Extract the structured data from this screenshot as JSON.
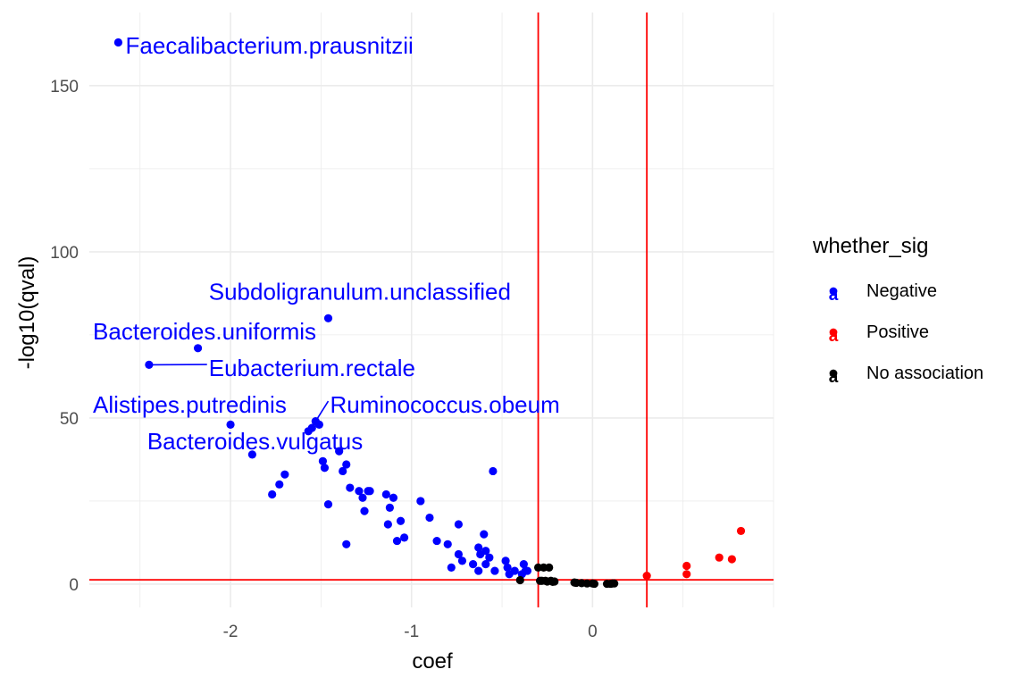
{
  "chart_data": {
    "type": "scatter",
    "title": "",
    "xlabel": "coef",
    "ylabel": "-log10(qval)",
    "xlim": [
      -2.78,
      1.0
    ],
    "ylim": [
      -7,
      172
    ],
    "x_ticks": [
      -2,
      -1,
      0
    ],
    "x_tick_labels": [
      "-2",
      "-1",
      "0"
    ],
    "y_ticks": [
      0,
      50,
      100,
      150
    ],
    "y_tick_labels": [
      "0",
      "50",
      "100",
      "150"
    ],
    "grid": true,
    "vlines": [
      -0.3,
      0.3
    ],
    "hlines": [
      1.3
    ],
    "reference_line_color": "#ff0000",
    "legend": {
      "title": "whether_sig",
      "placement": "right",
      "entries": [
        {
          "name": "Negative",
          "color": "#0000ff",
          "key": "a"
        },
        {
          "name": "Positive",
          "color": "#ff0000",
          "key": "a"
        },
        {
          "name": "No association",
          "color": "#000000",
          "key": "a"
        }
      ]
    },
    "series": [
      {
        "name": "Negative",
        "color": "#0000ff",
        "points": [
          [
            -2.62,
            163
          ],
          [
            -2.45,
            66
          ],
          [
            -2.18,
            71
          ],
          [
            -1.46,
            80
          ],
          [
            -2.0,
            48
          ],
          [
            -1.88,
            39
          ],
          [
            -1.77,
            27
          ],
          [
            -1.73,
            30
          ],
          [
            -1.7,
            33
          ],
          [
            -1.57,
            46
          ],
          [
            -1.55,
            47
          ],
          [
            -1.53,
            49
          ],
          [
            -1.51,
            48
          ],
          [
            -1.49,
            37
          ],
          [
            -1.48,
            35
          ],
          [
            -1.46,
            24
          ],
          [
            -1.4,
            40
          ],
          [
            -1.38,
            34
          ],
          [
            -1.36,
            36
          ],
          [
            -1.36,
            12
          ],
          [
            -1.34,
            29
          ],
          [
            -1.29,
            28
          ],
          [
            -1.27,
            26
          ],
          [
            -1.26,
            22
          ],
          [
            -1.24,
            28
          ],
          [
            -1.23,
            28
          ],
          [
            -1.14,
            27
          ],
          [
            -1.12,
            23
          ],
          [
            -1.13,
            18
          ],
          [
            -1.1,
            26
          ],
          [
            -1.08,
            13
          ],
          [
            -1.06,
            19
          ],
          [
            -1.04,
            14
          ],
          [
            -0.95,
            25
          ],
          [
            -0.9,
            20
          ],
          [
            -0.86,
            13
          ],
          [
            -0.8,
            12
          ],
          [
            -0.78,
            5
          ],
          [
            -0.74,
            18
          ],
          [
            -0.74,
            9
          ],
          [
            -0.72,
            7
          ],
          [
            -0.66,
            6
          ],
          [
            -0.63,
            4
          ],
          [
            -0.63,
            11
          ],
          [
            -0.62,
            9
          ],
          [
            -0.6,
            15
          ],
          [
            -0.59,
            10
          ],
          [
            -0.59,
            6
          ],
          [
            -0.57,
            8
          ],
          [
            -0.55,
            34
          ],
          [
            -0.54,
            4
          ],
          [
            -0.48,
            7
          ],
          [
            -0.47,
            5
          ],
          [
            -0.46,
            3
          ],
          [
            -0.43,
            4
          ],
          [
            -0.39,
            3
          ],
          [
            -0.38,
            6
          ],
          [
            -0.37,
            4
          ],
          [
            -0.36,
            4
          ]
        ]
      },
      {
        "name": "Positive",
        "color": "#ff0000",
        "points": [
          [
            0.3,
            2.5
          ],
          [
            0.52,
            5.5
          ],
          [
            0.52,
            3
          ],
          [
            0.7,
            8
          ],
          [
            0.77,
            7.5
          ],
          [
            0.82,
            16
          ]
        ]
      },
      {
        "name": "No association",
        "color": "#000000",
        "points": [
          [
            -0.4,
            1.2
          ],
          [
            -0.3,
            5
          ],
          [
            -0.29,
            1
          ],
          [
            -0.28,
            1
          ],
          [
            -0.27,
            5
          ],
          [
            -0.26,
            1
          ],
          [
            -0.25,
            0.8
          ],
          [
            -0.24,
            5
          ],
          [
            -0.23,
            1
          ],
          [
            -0.22,
            0.7
          ],
          [
            -0.21,
            0.8
          ],
          [
            -0.1,
            0.5
          ],
          [
            -0.09,
            0.4
          ],
          [
            -0.06,
            0.3
          ],
          [
            -0.03,
            0.2
          ],
          [
            0.0,
            0.2
          ],
          [
            0.01,
            0.1
          ],
          [
            0.08,
            0.1
          ],
          [
            0.1,
            0.1
          ],
          [
            0.11,
            0.2
          ],
          [
            0.12,
            0.2
          ]
        ]
      }
    ],
    "annotations": [
      {
        "text": "Faecalibacterium.prausnitzii",
        "x": -2.58,
        "y": 162,
        "anchor": "start"
      },
      {
        "text": "Subdoligranulum.unclassified",
        "x": -2.12,
        "y": 88,
        "anchor": "start"
      },
      {
        "text": "Bacteroides.uniformis",
        "x": -2.76,
        "y": 76,
        "anchor": "start"
      },
      {
        "text": "Eubacterium.rectale",
        "x": -2.12,
        "y": 65,
        "anchor": "start",
        "line_to": [
          -2.45,
          66
        ]
      },
      {
        "text": "Alistipes.putredinis",
        "x": -2.76,
        "y": 54,
        "anchor": "start"
      },
      {
        "text": "Ruminococcus.obeum",
        "x": -1.45,
        "y": 54,
        "anchor": "start",
        "line_to": [
          -1.53,
          49
        ]
      },
      {
        "text": "Bacteroides.vulgatus",
        "x": -2.46,
        "y": 43,
        "anchor": "start"
      }
    ]
  }
}
